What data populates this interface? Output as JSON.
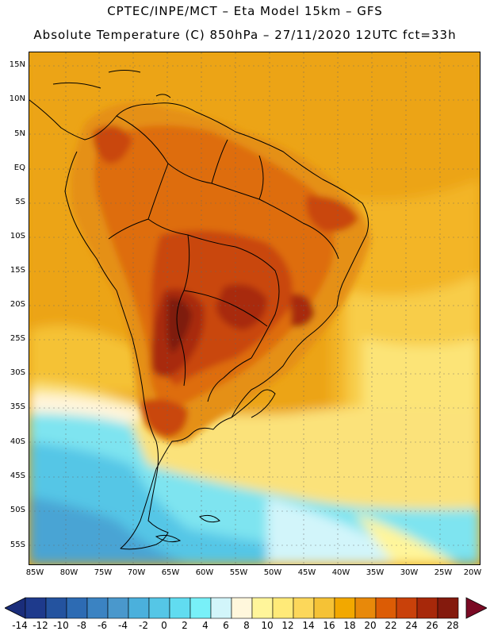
{
  "header": {
    "line1": "CPTEC/INPE/MCT –  Eta Model 15km – GFS",
    "line2": "Absolute Temperature (C) 850hPa – 27/11/2020 12UTC fct=33h"
  },
  "axes": {
    "lat_labels": [
      "15N",
      "10N",
      "5N",
      "EQ",
      "5S",
      "10S",
      "15S",
      "20S",
      "25S",
      "30S",
      "35S",
      "40S",
      "45S",
      "50S",
      "55S"
    ],
    "lon_labels": [
      "85W",
      "80W",
      "75W",
      "70W",
      "65W",
      "60W",
      "55W",
      "50W",
      "45W",
      "40W",
      "35W",
      "30W",
      "25W",
      "20W"
    ]
  },
  "colorbar": {
    "labels": [
      "-14",
      "-12",
      "-10",
      "-8",
      "-6",
      "-4",
      "-2",
      "0",
      "2",
      "4",
      "6",
      "8",
      "10",
      "12",
      "14",
      "16",
      "18",
      "20",
      "22",
      "24",
      "26",
      "28"
    ],
    "colors": [
      "#1e3a8c",
      "#24539f",
      "#2d6bb3",
      "#3b83c2",
      "#4a98cc",
      "#4bb0dc",
      "#55c6e6",
      "#61dcf0",
      "#78f0f8",
      "#d2f5fa",
      "#fff7dc",
      "#fff59a",
      "#ffea78",
      "#fcd75a",
      "#f5c236",
      "#f2a800",
      "#e8890a",
      "#dc5c05",
      "#c9410a",
      "#a7280a",
      "#841a0d"
    ],
    "low_color": "#1a2d7a",
    "high_color": "#7a0a24"
  }
}
